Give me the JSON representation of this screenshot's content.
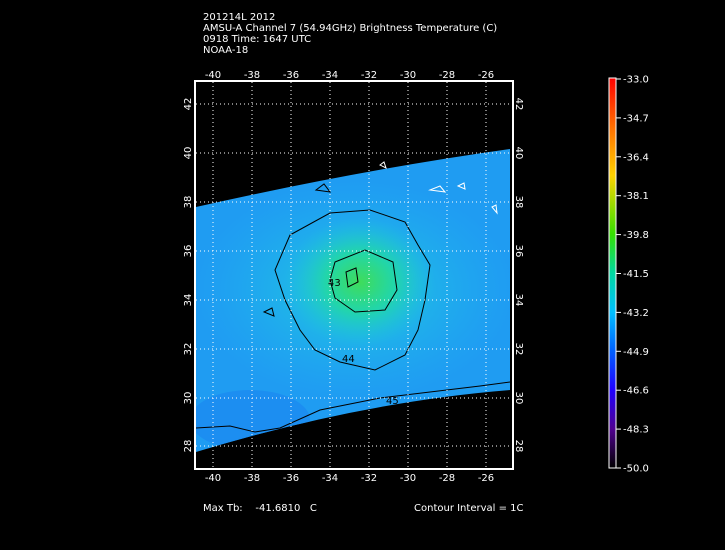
{
  "header": {
    "line1": "201214L 2012",
    "line2": "AMSU-A Channel 7 (54.94GHz) Brightness Temperature (C)",
    "line3": "0918 Time: 1647 UTC",
    "line4": "NOAA-18"
  },
  "map": {
    "lon_ticks": [
      "-40",
      "-38",
      "-36",
      "-34",
      "-32",
      "-30",
      "-28",
      "-26"
    ],
    "lat_ticks": [
      "28",
      "30",
      "32",
      "34",
      "36",
      "38",
      "40",
      "42"
    ],
    "contour_labels": [
      "43",
      "44",
      "45"
    ]
  },
  "colorbar": {
    "labels": [
      "-33.0",
      "-34.7",
      "-36.4",
      "-38.1",
      "-39.8",
      "-41.5",
      "-43.2",
      "-44.9",
      "-46.6",
      "-48.3",
      "-50.0"
    ]
  },
  "footer": {
    "max_tb_label": "Max Tb:",
    "max_tb_value": "-41.6810",
    "max_tb_unit": "C",
    "contour_interval": "Contour Interval = 1C"
  }
}
